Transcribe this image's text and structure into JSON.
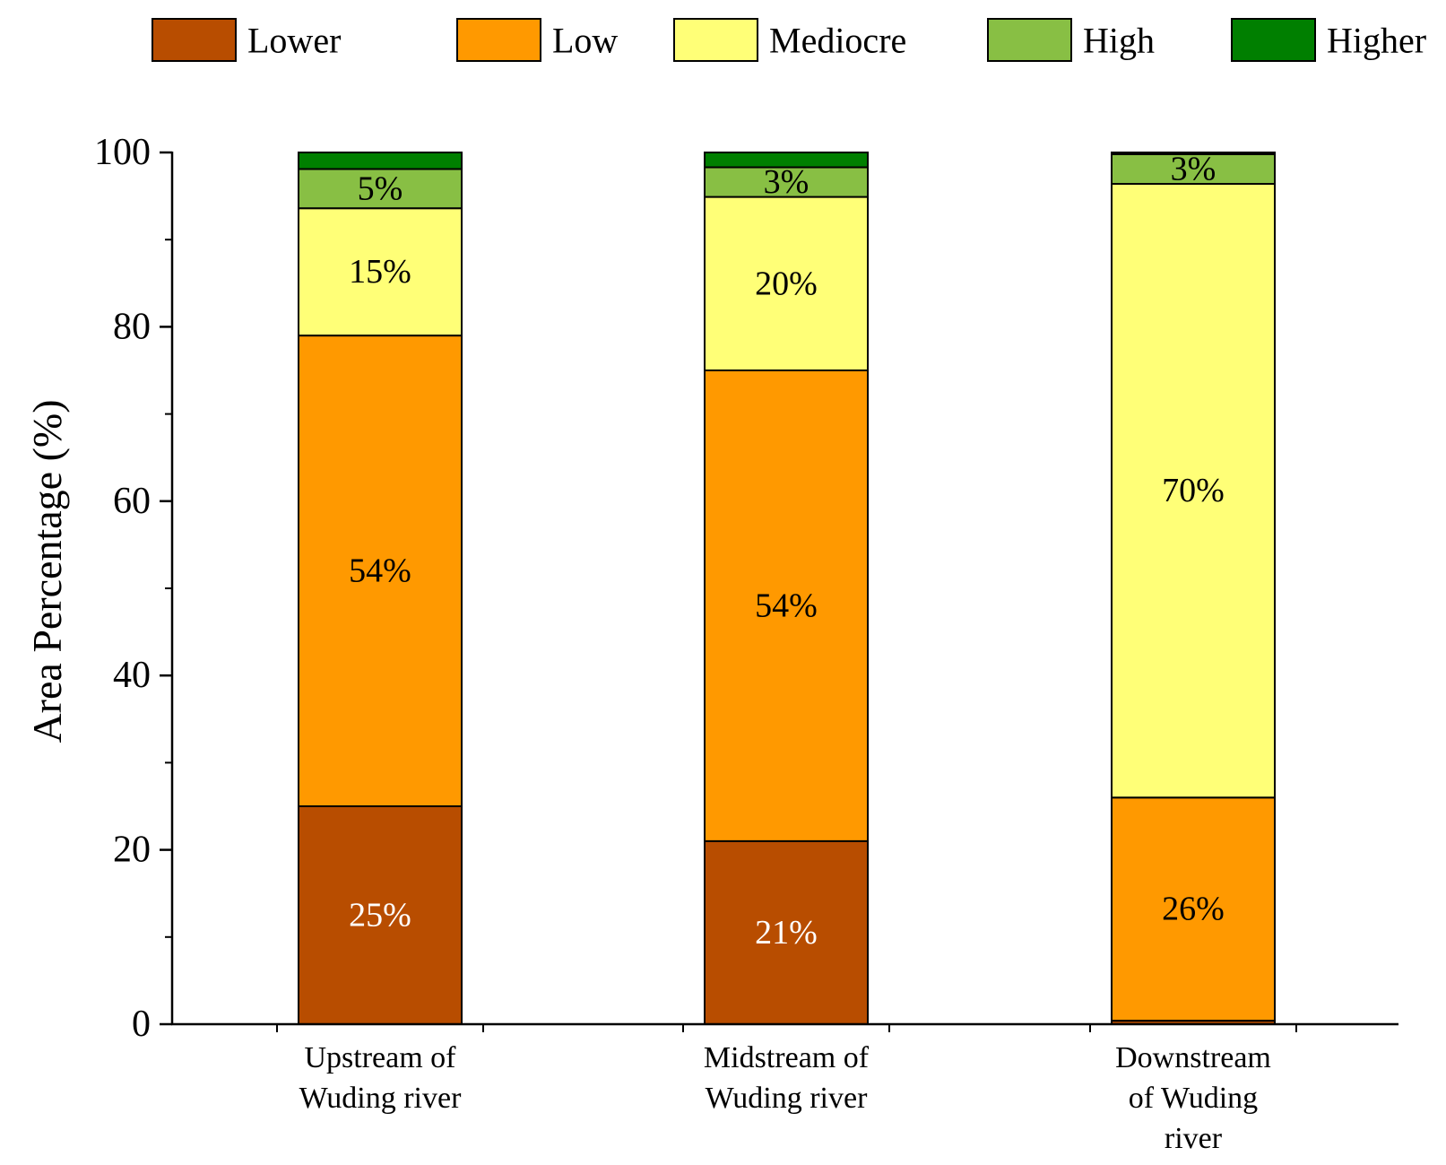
{
  "chart_data": {
    "type": "bar",
    "stacked": true,
    "title": "",
    "xlabel": "",
    "ylabel": "Area Percentage (%)",
    "ylim": [
      0,
      100
    ],
    "yticks": [
      0,
      20,
      40,
      60,
      80,
      100
    ],
    "legend_position": "top",
    "categories": [
      [
        "Upstream of",
        "Wuding river"
      ],
      [
        "Midstream of",
        "Wuding river"
      ],
      [
        "Downstream",
        "of Wuding",
        "river"
      ]
    ],
    "series": [
      {
        "name": "Lower",
        "color": "#b84d00",
        "label_color": "#ffffff",
        "values": [
          25,
          21,
          0.4
        ]
      },
      {
        "name": "Low",
        "color": "#ff9900",
        "label_color": "#000000",
        "values": [
          54,
          54,
          25.6
        ]
      },
      {
        "name": "Mediocre",
        "color": "#ffff77",
        "label_color": "#000000",
        "values": [
          14.6,
          19.9,
          70.4
        ]
      },
      {
        "name": "High",
        "color": "#88bf44",
        "label_color": "#000000",
        "values": [
          4.5,
          3.4,
          3.4
        ]
      },
      {
        "name": "Higher",
        "color": "#007f00",
        "label_color": "#000000",
        "values": [
          1.9,
          1.7,
          0.2
        ]
      }
    ],
    "data_labels": [
      [
        "25%",
        "54%",
        "15%",
        "5%",
        null
      ],
      [
        "21%",
        "54%",
        "20%",
        "3%",
        null
      ],
      [
        null,
        "26%",
        "70%",
        "3%",
        null
      ]
    ]
  }
}
